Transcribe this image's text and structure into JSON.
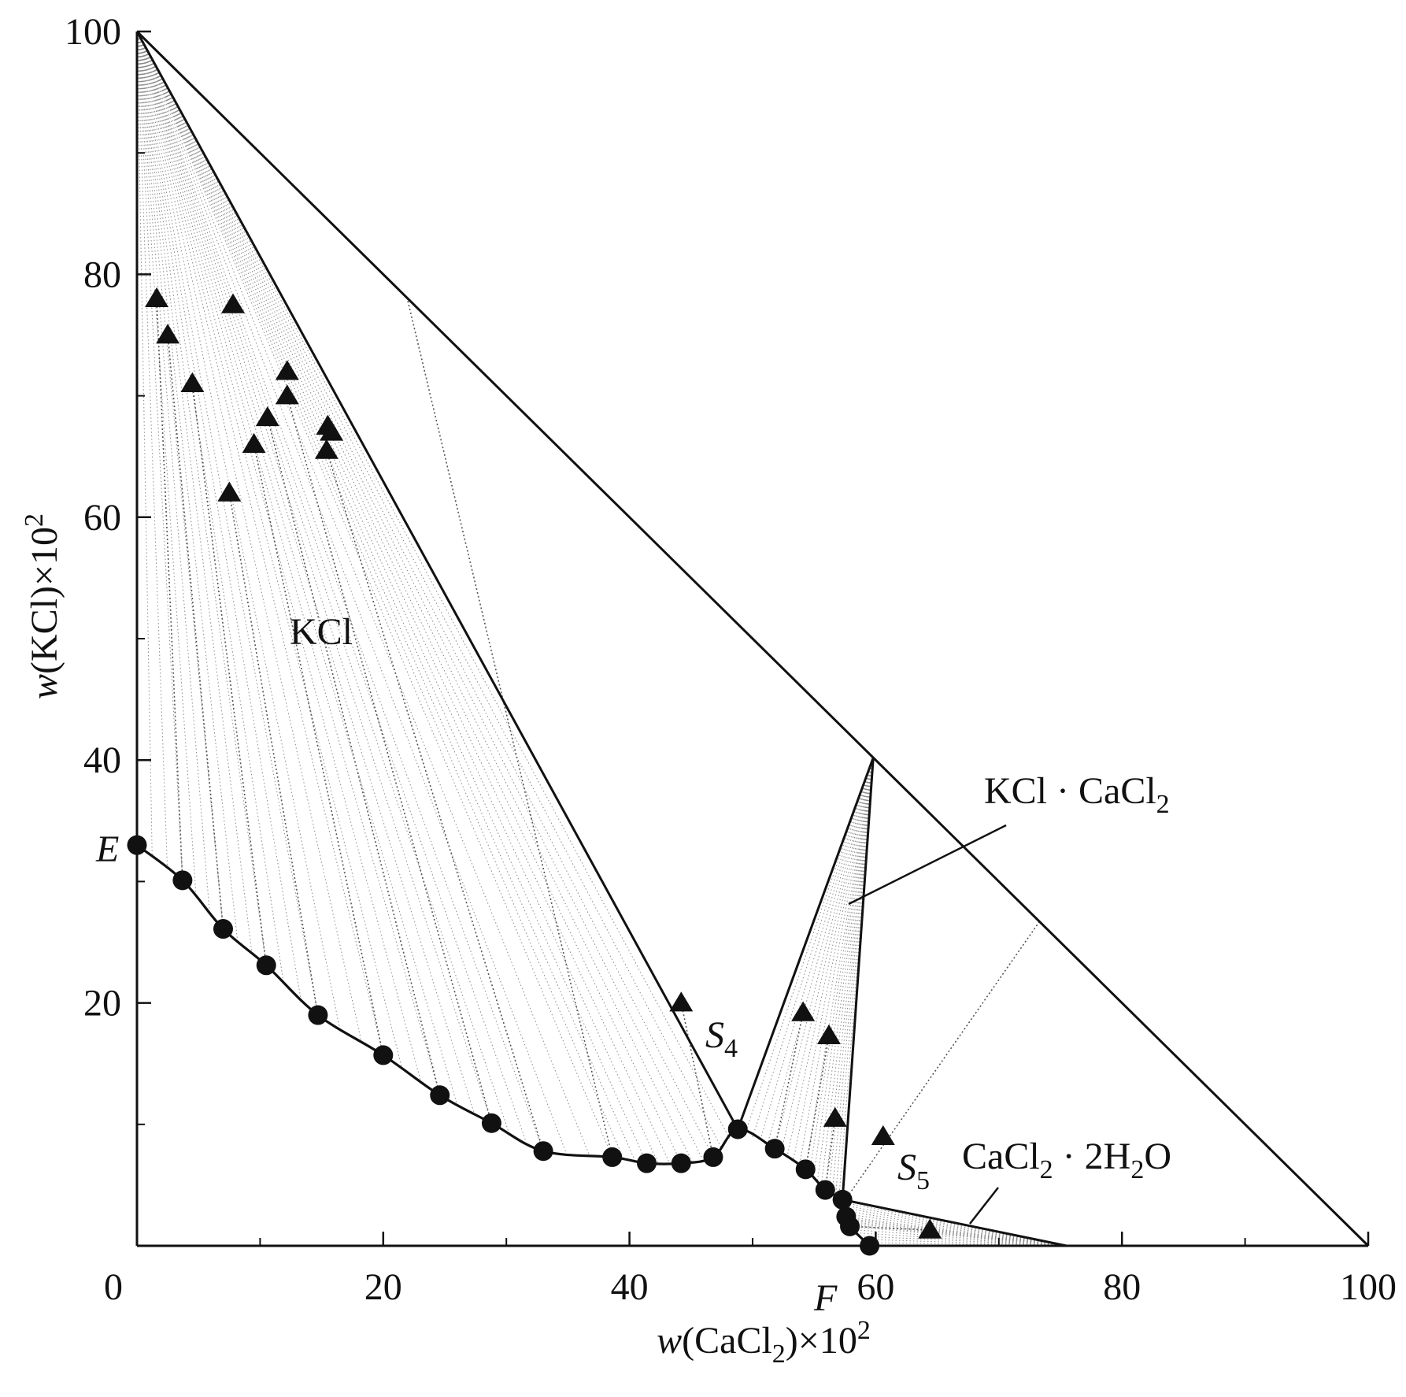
{
  "chart_data": {
    "type": "scatter",
    "xlabel": {
      "pre": "w",
      "mid": "(CaCl",
      "sub": "2",
      "post": ")×10",
      "sup": "2"
    },
    "ylabel": {
      "pre": "w",
      "mid": "(KCl)×10",
      "sup": "2"
    },
    "xlim": [
      0,
      100
    ],
    "ylim": [
      0,
      100
    ],
    "x_ticks": [
      0,
      20,
      40,
      60,
      80,
      100
    ],
    "y_ticks": [
      20,
      40,
      60,
      80,
      100
    ],
    "x_minor_ticks": [
      10,
      30,
      50,
      70,
      90
    ],
    "y_minor_ticks": [
      10,
      30,
      50,
      70,
      90
    ],
    "region_labels": {
      "kcl": "KCl",
      "double_salt": {
        "pre": "KCl · CaCl",
        "sub": "2"
      },
      "hydrate": {
        "pre": "CaCl",
        "sub": "2",
        "mid": " · 2H",
        "sub2": "2",
        "post": "O"
      }
    },
    "point_labels": {
      "E": "E",
      "F": "F",
      "S4": {
        "main": "S",
        "sub": "4"
      },
      "S5": {
        "main": "S",
        "sub": "5"
      }
    },
    "solubility_curve": [
      [
        0,
        33
      ],
      [
        3.7,
        30.1
      ],
      [
        7,
        26.1
      ],
      [
        10.5,
        23.1
      ],
      [
        14.7,
        19
      ],
      [
        20,
        15.7
      ],
      [
        24.6,
        12.4
      ],
      [
        28.8,
        10.1
      ],
      [
        33,
        7.8
      ],
      [
        38.6,
        7.3
      ],
      [
        41.4,
        6.8
      ],
      [
        44.2,
        6.8
      ],
      [
        46.8,
        7.3
      ],
      [
        48.8,
        9.6
      ],
      [
        51.8,
        8
      ],
      [
        54.3,
        6.3
      ],
      [
        55.9,
        4.6
      ],
      [
        57.3,
        3.8
      ],
      [
        57.6,
        2.4
      ],
      [
        57.9,
        1.6
      ],
      [
        59.5,
        0
      ]
    ],
    "liquid_circles": [
      [
        0,
        33
      ],
      [
        3.7,
        30.1
      ],
      [
        7,
        26.1
      ],
      [
        10.5,
        23.1
      ],
      [
        14.7,
        19
      ],
      [
        20,
        15.7
      ],
      [
        24.6,
        12.4
      ],
      [
        28.8,
        10.1
      ],
      [
        33,
        7.8
      ],
      [
        38.6,
        7.3
      ],
      [
        41.4,
        6.8
      ],
      [
        44.2,
        6.8
      ],
      [
        46.8,
        7.3
      ],
      [
        48.8,
        9.6
      ],
      [
        51.8,
        8
      ],
      [
        54.3,
        6.3
      ],
      [
        55.9,
        4.6
      ],
      [
        57.3,
        3.8
      ],
      [
        57.6,
        2.4
      ],
      [
        57.9,
        1.6
      ],
      [
        59.5,
        0
      ]
    ],
    "solid_triangles": [
      [
        1.6,
        78
      ],
      [
        2.5,
        75
      ],
      [
        4.5,
        71
      ],
      [
        7.8,
        77.5
      ],
      [
        7.5,
        62
      ],
      [
        9.5,
        66
      ],
      [
        10.6,
        68.2
      ],
      [
        12.2,
        72
      ],
      [
        12.2,
        70
      ],
      [
        15.5,
        67.5
      ],
      [
        15.8,
        67
      ],
      [
        15.4,
        65.5
      ],
      [
        44.2,
        20
      ],
      [
        54.1,
        19.2
      ],
      [
        56.2,
        17.3
      ],
      [
        56.7,
        10.5
      ],
      [
        60.6,
        9
      ],
      [
        64.4,
        1.3
      ]
    ],
    "tie_line_pairs": [
      [
        [
          1.6,
          78
        ],
        [
          3.7,
          30.1
        ]
      ],
      [
        [
          2.5,
          75
        ],
        [
          7,
          26.1
        ]
      ],
      [
        [
          4.5,
          71
        ],
        [
          10.5,
          23.1
        ]
      ],
      [
        [
          7.5,
          62
        ],
        [
          14.7,
          19
        ]
      ],
      [
        [
          9.5,
          66
        ],
        [
          20,
          15.7
        ]
      ],
      [
        [
          10.6,
          68.2
        ],
        [
          24.6,
          12.4
        ]
      ],
      [
        [
          12.2,
          70
        ],
        [
          28.8,
          10.1
        ]
      ],
      [
        [
          15.4,
          65.5
        ],
        [
          33,
          7.8
        ]
      ],
      [
        [
          22,
          77.8
        ],
        [
          38.6,
          7.3
        ]
      ],
      [
        [
          44.2,
          20
        ],
        [
          46.8,
          7.3
        ]
      ],
      [
        [
          54.1,
          19.2
        ],
        [
          51.8,
          8
        ]
      ],
      [
        [
          56.2,
          17.3
        ],
        [
          54.3,
          6.3
        ]
      ],
      [
        [
          56.7,
          10.5
        ],
        [
          55.9,
          4.6
        ]
      ],
      [
        [
          73.3,
          26.7
        ],
        [
          57.4,
          3.6
        ]
      ],
      [
        [
          64.4,
          1.3
        ],
        [
          57.9,
          1.6
        ]
      ]
    ],
    "solid_points": {
      "KCl": [
        0,
        100
      ],
      "KCl_CaCl2": [
        59.8,
        40.2
      ],
      "CaCl2_2H2O": [
        75.5,
        0
      ],
      "CaCl2": [
        100,
        0
      ]
    }
  }
}
